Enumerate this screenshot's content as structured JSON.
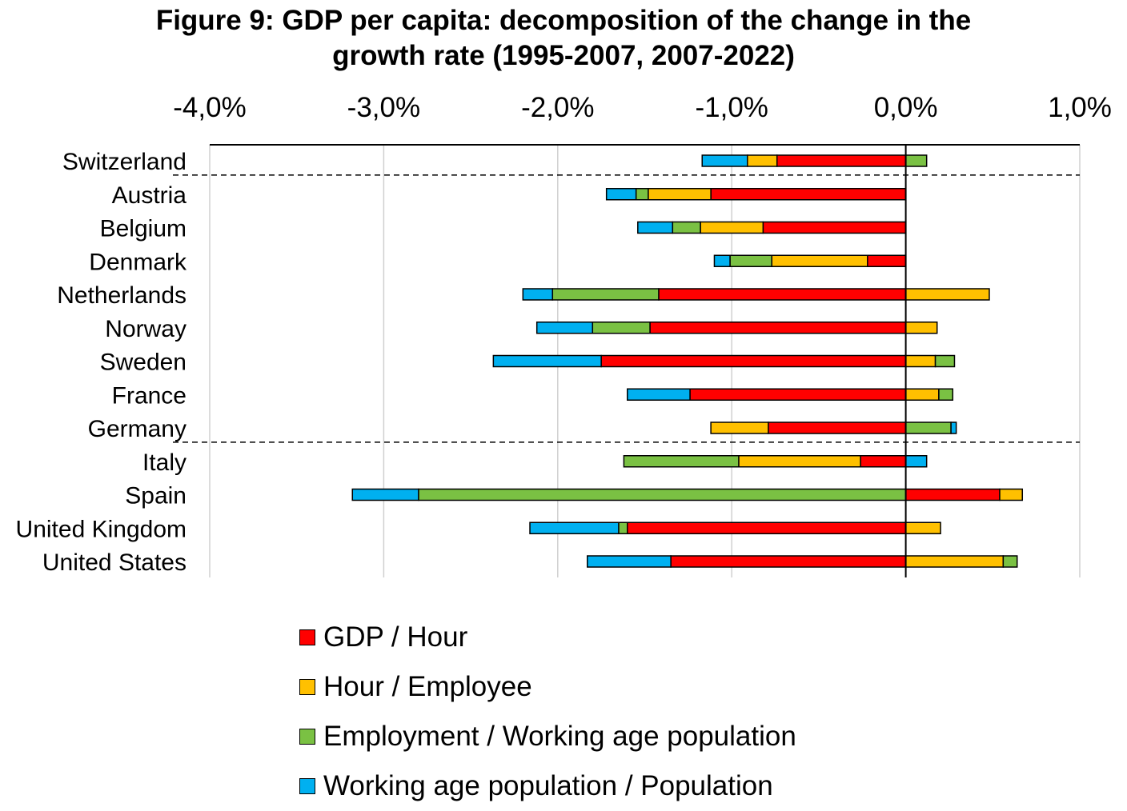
{
  "chart_data": {
    "type": "bar",
    "stacked": true,
    "orientation": "horizontal",
    "title_lines": [
      "Figure 9: GDP per capita: decomposition of the change in the",
      "growth rate (1995-2007, 2007-2022)"
    ],
    "xlim": [
      -4.0,
      1.0
    ],
    "xticks": [
      "-4,0%",
      "-3,0%",
      "-2,0%",
      "-1,0%",
      "0,0%",
      "1,0%"
    ],
    "xtick_values": [
      -4.0,
      -3.0,
      -2.0,
      -1.0,
      0.0,
      1.0
    ],
    "grid": true,
    "group_separators_after": [
      "Switzerland",
      "Germany"
    ],
    "categories": [
      "Switzerland",
      "Austria",
      "Belgium",
      "Denmark",
      "Netherlands",
      "Norway",
      "Sweden",
      "France",
      "Germany",
      "Italy",
      "Spain",
      "United Kingdom",
      "United States"
    ],
    "series": [
      {
        "name": "GDP / Hour",
        "color": "#ff0000",
        "values": [
          -0.74,
          -1.12,
          -0.82,
          -0.22,
          -1.42,
          -1.47,
          -1.75,
          -1.24,
          -0.79,
          -0.26,
          0.54,
          -1.6,
          -1.35
        ]
      },
      {
        "name": "Hour / Employee",
        "color": "#ffc000",
        "values": [
          -0.17,
          -0.36,
          -0.36,
          -0.55,
          0.48,
          0.18,
          0.17,
          0.19,
          -0.33,
          -0.7,
          0.13,
          0.2,
          0.56
        ]
      },
      {
        "name": "Employment / Working age population",
        "color": "#7ac143",
        "values": [
          0.12,
          -0.07,
          -0.16,
          -0.24,
          -0.61,
          -0.33,
          0.11,
          0.08,
          0.26,
          -0.66,
          -2.8,
          -0.05,
          0.08
        ]
      },
      {
        "name": "Working age population / Population",
        "color": "#00b0f0",
        "values": [
          -0.26,
          -0.17,
          -0.2,
          -0.09,
          -0.17,
          -0.32,
          -0.62,
          -0.36,
          0.03,
          0.12,
          -0.38,
          -0.51,
          -0.48
        ]
      }
    ],
    "legend_position": "bottom"
  }
}
